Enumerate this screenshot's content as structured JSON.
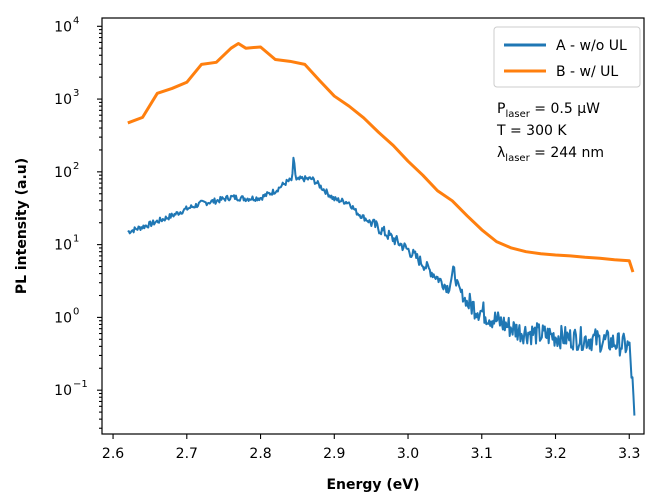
{
  "chart_data": {
    "type": "line",
    "xlabel": "Energy (eV)",
    "ylabel": "PL intensity (a.u)",
    "xlim": [
      2.585,
      3.32
    ],
    "ylim": [
      0.025,
      13000
    ],
    "yscale": "log",
    "xticks": [
      "2.6",
      "2.7",
      "2.8",
      "2.9",
      "3.0",
      "3.1",
      "3.2",
      "3.3"
    ],
    "yticks": [
      {
        "base": "10",
        "exp": "4",
        "value": 10000
      },
      {
        "base": "10",
        "exp": "3",
        "value": 1000
      },
      {
        "base": "10",
        "exp": "2",
        "value": 100
      },
      {
        "base": "10",
        "exp": "1",
        "value": 10
      },
      {
        "base": "10",
        "exp": "0",
        "value": 1
      },
      {
        "base": "10",
        "exp": "−1",
        "value": 0.1
      }
    ],
    "legend_position": "top-right",
    "series": [
      {
        "name": "A - w/o UL",
        "color": "#1f77b4",
        "noise": true,
        "x": [
          2.62,
          2.65,
          2.68,
          2.7,
          2.72,
          2.74,
          2.76,
          2.78,
          2.8,
          2.82,
          2.835,
          2.843,
          2.845,
          2.848,
          2.855,
          2.87,
          2.88,
          2.9,
          2.92,
          2.93,
          2.95,
          2.98,
          3.0,
          3.02,
          3.04,
          3.055,
          3.062,
          3.068,
          3.08,
          3.1,
          3.12,
          3.15,
          3.18,
          3.2,
          3.22,
          3.25,
          3.28,
          3.3,
          3.305,
          3.307
        ],
        "y": [
          15,
          19,
          25,
          31,
          37,
          40,
          45,
          43,
          44,
          55,
          72,
          78,
          170,
          75,
          80,
          80,
          65,
          42,
          38,
          28,
          20,
          12,
          8.5,
          5.5,
          3.5,
          2.5,
          4.5,
          2.5,
          1.6,
          1.2,
          0.9,
          0.65,
          0.58,
          0.55,
          0.52,
          0.5,
          0.45,
          0.4,
          0.1,
          0.035
        ]
      },
      {
        "name": "B - w/ UL",
        "color": "#ff7f0e",
        "noise": false,
        "x": [
          2.62,
          2.64,
          2.66,
          2.68,
          2.7,
          2.72,
          2.74,
          2.76,
          2.77,
          2.78,
          2.8,
          2.82,
          2.84,
          2.86,
          2.88,
          2.9,
          2.92,
          2.94,
          2.96,
          2.98,
          3.0,
          3.02,
          3.04,
          3.06,
          3.08,
          3.1,
          3.12,
          3.14,
          3.16,
          3.18,
          3.2,
          3.22,
          3.24,
          3.26,
          3.28,
          3.3,
          3.305
        ],
        "y": [
          470,
          560,
          1200,
          1400,
          1700,
          3000,
          3200,
          5000,
          5800,
          5000,
          5200,
          3500,
          3300,
          3000,
          1800,
          1100,
          800,
          550,
          350,
          230,
          140,
          90,
          55,
          40,
          25,
          16,
          11,
          9,
          8,
          7.5,
          7.2,
          7,
          6.7,
          6.5,
          6.2,
          6,
          4.2
        ]
      }
    ],
    "annotations": [
      {
        "parts": [
          {
            "t": "P"
          },
          {
            "t": "laser",
            "sub": true
          },
          {
            "t": " = 0.5 µW"
          }
        ]
      },
      {
        "parts": [
          {
            "t": "T = 300 K"
          }
        ]
      },
      {
        "parts": [
          {
            "t": "λ"
          },
          {
            "t": "laser",
            "sub": true
          },
          {
            "t": " = 244 nm"
          }
        ]
      }
    ]
  }
}
